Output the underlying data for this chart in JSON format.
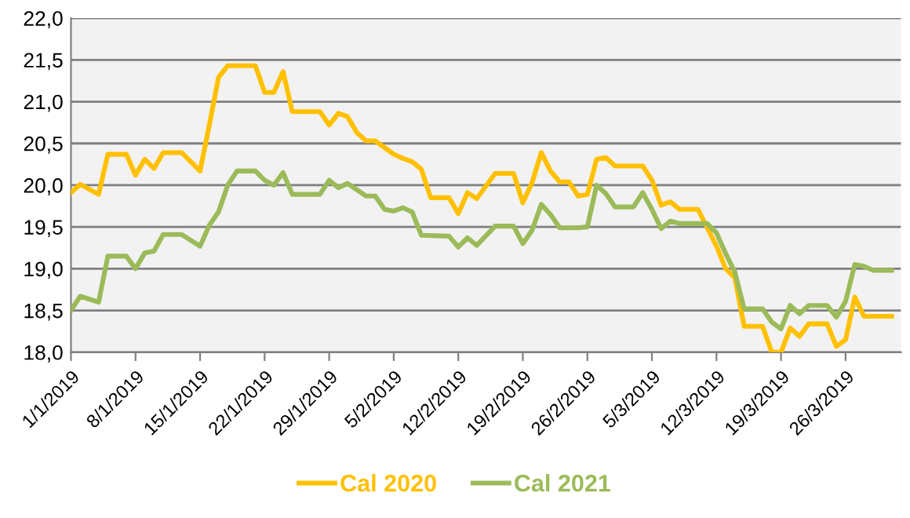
{
  "chart_data": {
    "type": "line",
    "xlim": [
      "2019-01-01",
      "2019-04-01"
    ],
    "xticks": [
      {
        "value": "2019-01-01",
        "label": "1/1/2019"
      },
      {
        "value": "2019-01-08",
        "label": "8/1/2019"
      },
      {
        "value": "2019-01-15",
        "label": "15/1/2019"
      },
      {
        "value": "2019-01-22",
        "label": "22/1/2019"
      },
      {
        "value": "2019-01-29",
        "label": "29/1/2019"
      },
      {
        "value": "2019-02-05",
        "label": "5/2/2019"
      },
      {
        "value": "2019-02-12",
        "label": "12/2/2019"
      },
      {
        "value": "2019-02-19",
        "label": "19/2/2019"
      },
      {
        "value": "2019-02-26",
        "label": "26/2/2019"
      },
      {
        "value": "2019-03-05",
        "label": "5/3/2019"
      },
      {
        "value": "2019-03-12",
        "label": "12/3/2019"
      },
      {
        "value": "2019-03-19",
        "label": "19/3/2019"
      },
      {
        "value": "2019-03-26",
        "label": "26/3/2019"
      }
    ],
    "ylim": [
      18,
      22
    ],
    "yticks": [
      {
        "value": 18,
        "label": "18,0"
      },
      {
        "value": 18.5,
        "label": "18,5"
      },
      {
        "value": 19,
        "label": "19,0"
      },
      {
        "value": 19.5,
        "label": "19,5"
      },
      {
        "value": 20,
        "label": "20,0"
      },
      {
        "value": 20.5,
        "label": "20,5"
      },
      {
        "value": 21,
        "label": "21,0"
      },
      {
        "value": 21.5,
        "label": "21,5"
      },
      {
        "value": 22,
        "label": "22,0"
      }
    ],
    "grid": "y",
    "legend": "bottom",
    "marker": "none",
    "line_style": "solid",
    "series": [
      {
        "name": "Cal 2020",
        "color": "#ffc000",
        "x": [
          "2019-01-01",
          "2019-01-02",
          "2019-01-04",
          "2019-01-05",
          "2019-01-07",
          "2019-01-08",
          "2019-01-09",
          "2019-01-10",
          "2019-01-11",
          "2019-01-13",
          "2019-01-15",
          "2019-01-16",
          "2019-01-17",
          "2019-01-18",
          "2019-01-21",
          "2019-01-22",
          "2019-01-23",
          "2019-01-24",
          "2019-01-25",
          "2019-01-28",
          "2019-01-29",
          "2019-01-30",
          "2019-01-31",
          "2019-02-01",
          "2019-02-02",
          "2019-02-03",
          "2019-02-05",
          "2019-02-06",
          "2019-02-07",
          "2019-02-08",
          "2019-02-09",
          "2019-02-11",
          "2019-02-12",
          "2019-02-13",
          "2019-02-14",
          "2019-02-16",
          "2019-02-18",
          "2019-02-19",
          "2019-02-20",
          "2019-02-21",
          "2019-02-22",
          "2019-02-23",
          "2019-02-24",
          "2019-02-25",
          "2019-02-26",
          "2019-02-27",
          "2019-02-28",
          "2019-03-01",
          "2019-03-04",
          "2019-03-05",
          "2019-03-06",
          "2019-03-07",
          "2019-03-08",
          "2019-03-10",
          "2019-03-11",
          "2019-03-12",
          "2019-03-13",
          "2019-03-14",
          "2019-03-15",
          "2019-03-17",
          "2019-03-18",
          "2019-03-19",
          "2019-03-20",
          "2019-03-21",
          "2019-03-22",
          "2019-03-24",
          "2019-03-25",
          "2019-03-26",
          "2019-03-27",
          "2019-03-28",
          "2019-03-31"
        ],
        "values": [
          19.91,
          20.01,
          19.89,
          20.37,
          20.37,
          20.12,
          20.31,
          20.2,
          20.39,
          20.39,
          20.17,
          20.72,
          21.29,
          21.43,
          21.43,
          21.11,
          21.11,
          21.36,
          20.88,
          20.88,
          20.72,
          20.86,
          20.82,
          20.63,
          20.53,
          20.53,
          20.37,
          20.32,
          20.28,
          20.19,
          19.85,
          19.85,
          19.66,
          19.91,
          19.84,
          20.14,
          20.14,
          19.79,
          20.03,
          20.39,
          20.17,
          20.04,
          20.04,
          19.87,
          19.89,
          20.31,
          20.33,
          20.23,
          20.23,
          20.06,
          19.76,
          19.8,
          19.71,
          19.71,
          19.49,
          19.27,
          19.0,
          18.89,
          18.31,
          18.31,
          18.0,
          18.0,
          18.29,
          18.19,
          18.34,
          18.34,
          18.07,
          18.15,
          18.66,
          18.43,
          18.43
        ]
      },
      {
        "name": "Cal 2021",
        "color": "#9bbb59",
        "x": [
          "2019-01-01",
          "2019-01-02",
          "2019-01-04",
          "2019-01-05",
          "2019-01-07",
          "2019-01-08",
          "2019-01-09",
          "2019-01-10",
          "2019-01-11",
          "2019-01-13",
          "2019-01-15",
          "2019-01-16",
          "2019-01-17",
          "2019-01-18",
          "2019-01-19",
          "2019-01-21",
          "2019-01-22",
          "2019-01-23",
          "2019-01-24",
          "2019-01-25",
          "2019-01-28",
          "2019-01-29",
          "2019-01-30",
          "2019-01-31",
          "2019-02-02",
          "2019-02-03",
          "2019-02-04",
          "2019-02-05",
          "2019-02-06",
          "2019-02-07",
          "2019-02-08",
          "2019-02-11",
          "2019-02-12",
          "2019-02-13",
          "2019-02-14",
          "2019-02-16",
          "2019-02-18",
          "2019-02-19",
          "2019-02-20",
          "2019-02-21",
          "2019-02-22",
          "2019-02-23",
          "2019-02-25",
          "2019-02-26",
          "2019-02-27",
          "2019-02-28",
          "2019-03-01",
          "2019-03-03",
          "2019-03-04",
          "2019-03-05",
          "2019-03-06",
          "2019-03-07",
          "2019-03-08",
          "2019-03-11",
          "2019-03-12",
          "2019-03-13",
          "2019-03-14",
          "2019-03-15",
          "2019-03-17",
          "2019-03-18",
          "2019-03-19",
          "2019-03-20",
          "2019-03-21",
          "2019-03-22",
          "2019-03-24",
          "2019-03-25",
          "2019-03-26",
          "2019-03-27",
          "2019-03-28",
          "2019-03-29",
          "2019-03-31"
        ],
        "values": [
          18.5,
          18.67,
          18.6,
          19.15,
          19.15,
          19.0,
          19.19,
          19.21,
          19.41,
          19.41,
          19.27,
          19.52,
          19.68,
          20.0,
          20.17,
          20.17,
          20.06,
          20.0,
          20.15,
          19.89,
          19.89,
          20.06,
          19.97,
          20.02,
          19.87,
          19.87,
          19.71,
          19.69,
          19.73,
          19.68,
          19.4,
          19.39,
          19.26,
          19.37,
          19.28,
          19.51,
          19.51,
          19.3,
          19.46,
          19.77,
          19.65,
          19.49,
          19.49,
          19.5,
          20.0,
          19.9,
          19.74,
          19.74,
          19.91,
          19.71,
          19.48,
          19.57,
          19.54,
          19.54,
          19.43,
          19.18,
          18.96,
          18.52,
          18.52,
          18.36,
          18.28,
          18.56,
          18.46,
          18.56,
          18.56,
          18.42,
          18.61,
          19.05,
          19.03,
          18.98,
          18.98
        ]
      }
    ]
  }
}
